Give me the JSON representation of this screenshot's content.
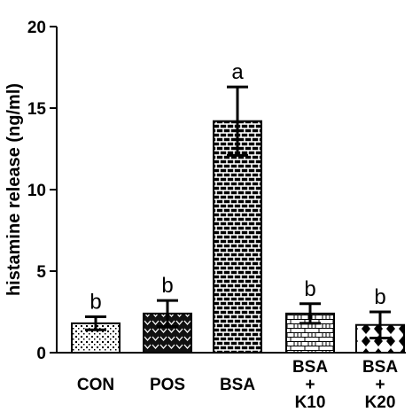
{
  "chart_data": {
    "type": "bar",
    "title": "",
    "xlabel": "",
    "ylabel": "histamine release (ng/ml)",
    "ylim": [
      0,
      20
    ],
    "yticks": [
      0,
      5,
      10,
      15,
      20
    ],
    "categories": [
      "CON",
      "POS",
      "BSA",
      "BSA\n+\nK10",
      "BSA\n+\nK20"
    ],
    "values": [
      1.8,
      2.4,
      14.2,
      2.4,
      1.7
    ],
    "errors": [
      0.4,
      0.8,
      2.1,
      0.6,
      0.8
    ],
    "annotations": [
      "b",
      "b",
      "a",
      "b",
      "b"
    ],
    "patterns": [
      "dots",
      "chevron",
      "brick",
      "brick-light",
      "diamond"
    ],
    "grid": false,
    "legend": "none",
    "colors": {
      "ink": "#000000",
      "background": "#ffffff"
    }
  }
}
